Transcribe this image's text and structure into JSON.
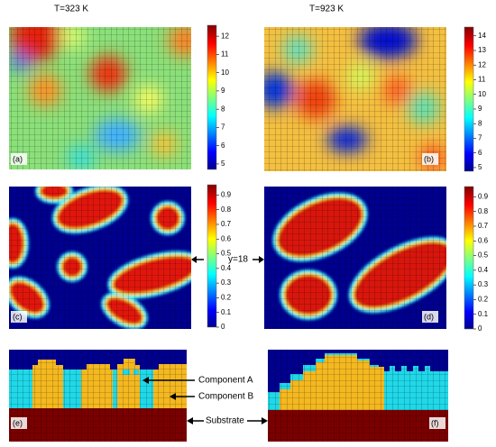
{
  "titles": [
    "T=323 K",
    "T=923 K"
  ],
  "panels": [
    {
      "label": "(a)",
      "clim": [
        4.7,
        12.6
      ],
      "ticks": [
        5,
        6,
        7,
        8,
        9,
        10,
        11,
        12
      ]
    },
    {
      "label": "(b)",
      "clim": [
        4.75,
        14.6
      ],
      "ticks": [
        5,
        6,
        7,
        8,
        9,
        10,
        11,
        12,
        13,
        14
      ]
    },
    {
      "label": "(c)",
      "clim": [
        0,
        0.97
      ],
      "ticks": [
        0,
        0.1,
        0.2,
        0.3,
        0.4,
        0.5,
        0.6,
        0.7,
        0.8,
        0.9
      ]
    },
    {
      "label": "(d)",
      "clim": [
        0,
        0.97
      ],
      "ticks": [
        0,
        0.1,
        0.2,
        0.3,
        0.4,
        0.5,
        0.6,
        0.7,
        0.8,
        0.9
      ]
    },
    {
      "label": "(e)"
    },
    {
      "label": "(f)"
    }
  ],
  "annotations": {
    "cut": "y=18",
    "component_a": "Component A",
    "component_b": "Component B",
    "substrate": "Substrate"
  }
}
